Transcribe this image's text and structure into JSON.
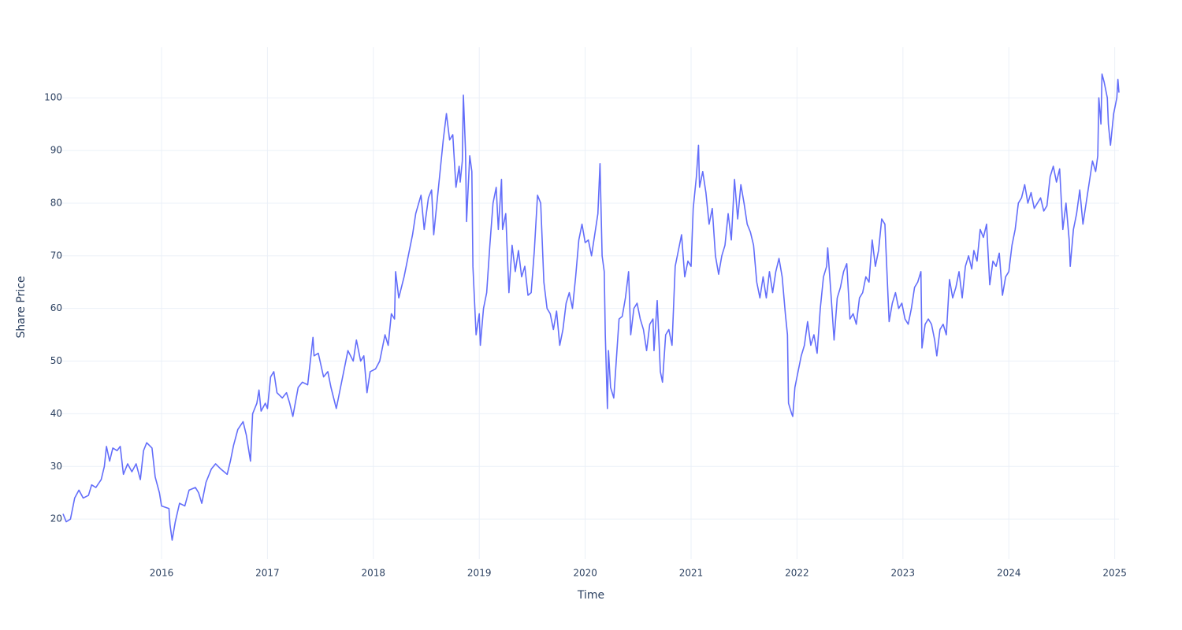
{
  "chart_data": {
    "type": "line",
    "xlabel": "Time",
    "ylabel": "Share Price",
    "color": "#636efa",
    "grid": true,
    "xlim": [
      2015.07,
      2025.04
    ],
    "xticks": [
      2016,
      2017,
      2018,
      2019,
      2020,
      2021,
      2022,
      2023,
      2024,
      2025
    ],
    "ylim": [
      12.4,
      109.6
    ],
    "yticks": [
      20,
      30,
      40,
      50,
      60,
      70,
      80,
      90,
      100
    ],
    "x": [
      2015.07,
      2015.1,
      2015.14,
      2015.18,
      2015.22,
      2015.26,
      2015.31,
      2015.34,
      2015.38,
      2015.43,
      2015.46,
      2015.48,
      2015.51,
      2015.54,
      2015.58,
      2015.61,
      2015.64,
      2015.68,
      2015.72,
      2015.76,
      2015.8,
      2015.83,
      2015.86,
      2015.91,
      2015.94,
      2015.98,
      2016.0,
      2016.07,
      2016.08,
      2016.1,
      2016.13,
      2016.17,
      2016.22,
      2016.26,
      2016.32,
      2016.35,
      2016.38,
      2016.42,
      2016.47,
      2016.51,
      2016.56,
      2016.62,
      2016.65,
      2016.68,
      2016.72,
      2016.77,
      2016.8,
      2016.84,
      2016.86,
      2016.9,
      2016.92,
      2016.94,
      2016.98,
      2017.0,
      2017.03,
      2017.06,
      2017.09,
      2017.14,
      2017.18,
      2017.21,
      2017.24,
      2017.29,
      2017.33,
      2017.38,
      2017.43,
      2017.44,
      2017.48,
      2017.53,
      2017.57,
      2017.6,
      2017.65,
      2017.67,
      2017.72,
      2017.76,
      2017.81,
      2017.84,
      2017.88,
      2017.91,
      2017.94,
      2017.97,
      2018.02,
      2018.06,
      2018.11,
      2018.14,
      2018.17,
      2018.2,
      2018.21,
      2018.24,
      2018.29,
      2018.33,
      2018.37,
      2018.4,
      2018.45,
      2018.48,
      2018.52,
      2018.55,
      2018.57,
      2018.6,
      2018.63,
      2018.66,
      2018.69,
      2018.72,
      2018.75,
      2018.78,
      2018.81,
      2018.82,
      2018.84,
      2018.85,
      2018.87,
      2018.88,
      2018.91,
      2018.93,
      2018.94,
      2018.97,
      2019.0,
      2019.01,
      2019.04,
      2019.07,
      2019.1,
      2019.13,
      2019.16,
      2019.18,
      2019.21,
      2019.22,
      2019.25,
      2019.28,
      2019.31,
      2019.34,
      2019.37,
      2019.4,
      2019.43,
      2019.46,
      2019.49,
      2019.52,
      2019.55,
      2019.58,
      2019.61,
      2019.64,
      2019.67,
      2019.7,
      2019.73,
      2019.76,
      2019.79,
      2019.82,
      2019.85,
      2019.88,
      2019.91,
      2019.94,
      2019.97,
      2020.0,
      2020.03,
      2020.06,
      2020.09,
      2020.12,
      2020.14,
      2020.16,
      2020.18,
      2020.19,
      2020.21,
      2020.22,
      2020.24,
      2020.27,
      2020.3,
      2020.32,
      2020.35,
      2020.38,
      2020.41,
      2020.43,
      2020.46,
      2020.49,
      2020.52,
      2020.55,
      2020.58,
      2020.61,
      2020.64,
      2020.65,
      2020.68,
      2020.71,
      2020.73,
      2020.76,
      2020.79,
      2020.82,
      2020.85,
      2020.88,
      2020.91,
      2020.94,
      2020.97,
      2021.0,
      2021.02,
      2021.05,
      2021.07,
      2021.08,
      2021.11,
      2021.14,
      2021.17,
      2021.2,
      2021.23,
      2021.26,
      2021.29,
      2021.32,
      2021.35,
      2021.38,
      2021.41,
      2021.44,
      2021.47,
      2021.5,
      2021.53,
      2021.56,
      2021.59,
      2021.62,
      2021.65,
      2021.68,
      2021.71,
      2021.74,
      2021.77,
      2021.8,
      2021.83,
      2021.86,
      2021.89,
      2021.91,
      2021.92,
      2021.95,
      2021.96,
      2021.98,
      2022.01,
      2022.04,
      2022.07,
      2022.1,
      2022.13,
      2022.16,
      2022.19,
      2022.22,
      2022.25,
      2022.28,
      2022.29,
      2022.32,
      2022.35,
      2022.38,
      2022.41,
      2022.44,
      2022.47,
      2022.5,
      2022.53,
      2022.56,
      2022.59,
      2022.62,
      2022.65,
      2022.68,
      2022.71,
      2022.74,
      2022.77,
      2022.8,
      2022.83,
      2022.86,
      2022.87,
      2022.9,
      2022.93,
      2022.96,
      2022.99,
      2023.02,
      2023.05,
      2023.08,
      2023.11,
      2023.14,
      2023.17,
      2023.18,
      2023.21,
      2023.24,
      2023.27,
      2023.3,
      2023.32,
      2023.35,
      2023.38,
      2023.41,
      2023.44,
      2023.47,
      2023.5,
      2023.53,
      2023.56,
      2023.59,
      2023.62,
      2023.65,
      2023.67,
      2023.7,
      2023.73,
      2023.76,
      2023.79,
      2023.82,
      2023.85,
      2023.88,
      2023.91,
      2023.94,
      2023.97,
      2024.0,
      2024.03,
      2024.06,
      2024.09,
      2024.12,
      2024.15,
      2024.18,
      2024.21,
      2024.24,
      2024.27,
      2024.3,
      2024.33,
      2024.36,
      2024.39,
      2024.42,
      2024.45,
      2024.48,
      2024.51,
      2024.54,
      2024.57,
      2024.58,
      2024.61,
      2024.64,
      2024.67,
      2024.7,
      2024.73,
      2024.76,
      2024.79,
      2024.82,
      2024.84,
      2024.85,
      2024.87,
      2024.88,
      2024.9,
      2024.93,
      2024.94,
      2024.96,
      2024.99,
      2025.02,
      2025.03,
      2025.04
    ],
    "values": [
      21,
      19.5,
      20,
      24,
      25.5,
      24,
      24.5,
      26.5,
      26,
      27.5,
      30,
      33.8,
      31,
      33.5,
      33,
      33.8,
      28.5,
      30.5,
      29,
      30.5,
      27.5,
      33,
      34.5,
      33.5,
      28,
      25,
      22.5,
      22,
      19,
      16,
      19.5,
      23,
      22.5,
      25.5,
      26,
      25,
      23,
      27,
      29.5,
      30.5,
      29.5,
      28.5,
      31,
      34,
      37,
      38.5,
      36,
      31,
      40,
      42,
      44.5,
      40.5,
      42,
      41,
      47,
      48,
      44,
      43,
      44,
      42,
      39.5,
      45,
      46,
      45.5,
      54.5,
      51,
      51.5,
      47,
      48,
      45,
      41,
      43,
      48,
      52,
      50,
      54,
      50,
      51,
      44,
      48,
      48.5,
      50,
      55,
      53,
      59,
      58,
      67,
      62,
      66,
      70,
      74,
      78,
      81.5,
      75,
      81,
      82.5,
      74,
      80,
      86,
      92,
      97,
      92,
      93,
      83,
      87,
      84,
      88,
      100.5,
      90,
      76.5,
      89,
      86,
      68,
      55,
      59,
      53,
      60,
      63,
      72,
      80,
      83,
      75,
      84.5,
      75,
      78,
      63,
      72,
      67,
      71,
      66,
      68,
      62.5,
      63,
      71,
      81.5,
      80,
      65,
      60,
      59,
      56,
      59.5,
      53,
      56,
      61,
      63,
      60,
      66,
      73,
      76,
      72.5,
      73,
      70,
      74,
      78,
      87.5,
      70,
      67,
      55,
      41,
      52,
      45,
      43,
      52,
      58,
      58.5,
      62,
      67,
      55,
      60,
      61,
      58,
      56,
      52,
      57,
      58,
      52,
      61.5,
      48,
      46,
      55,
      56,
      53,
      68,
      71,
      74,
      66,
      69,
      68,
      79,
      85,
      91,
      83,
      86,
      82,
      76,
      79,
      70,
      66.5,
      70,
      72,
      78,
      73,
      84.5,
      77,
      83.5,
      80,
      76,
      74.5,
      72,
      65,
      62,
      66,
      62,
      67,
      63,
      67,
      69.5,
      66,
      59,
      55,
      42,
      40,
      39.5,
      45,
      48,
      51,
      53,
      57.5,
      53,
      55,
      51.5,
      60,
      66,
      68,
      71.5,
      63,
      54,
      62,
      64,
      67,
      68.5,
      58,
      59,
      57,
      62,
      63,
      66,
      65,
      73,
      68,
      71,
      77,
      76,
      62,
      57.5,
      61,
      63,
      60,
      61,
      58,
      57,
      60,
      64,
      65,
      67,
      52.5,
      57,
      58,
      57,
      54,
      51,
      56,
      57,
      55,
      65.5,
      62,
      64,
      67,
      62,
      68,
      70,
      67.5,
      71,
      69,
      75,
      73.5,
      76,
      64.5,
      69,
      68,
      70.5,
      62.5,
      66,
      67,
      72,
      75,
      80,
      81,
      83.5,
      80,
      82,
      79,
      80,
      81,
      78.5,
      79.5,
      85,
      87,
      84,
      86.5,
      75,
      80,
      73,
      68,
      75,
      78,
      82.5,
      76,
      80,
      84,
      88,
      86,
      89,
      100,
      95,
      104.5,
      103,
      100,
      95,
      91,
      97,
      100,
      103.5,
      101
    ]
  }
}
